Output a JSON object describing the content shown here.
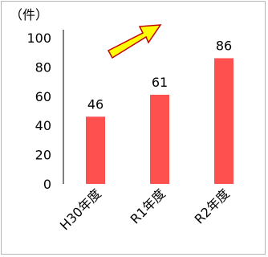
{
  "chart_data": {
    "type": "bar",
    "unit_label": "（件）",
    "categories": [
      "H30年度",
      "R1年度",
      "R2年度"
    ],
    "values": [
      46,
      61,
      86
    ],
    "data_labels": [
      "46",
      "61",
      "86"
    ],
    "ylim": [
      0,
      100
    ],
    "yticks": [
      "0",
      "20",
      "40",
      "60",
      "80",
      "100"
    ],
    "ytick_values": [
      0,
      20,
      40,
      60,
      80,
      100
    ],
    "grid": false,
    "bar_color": "#ff5050",
    "annotation": {
      "kind": "upward-trend-arrow",
      "fill": "#ffff00",
      "stroke": "#c00000"
    }
  }
}
